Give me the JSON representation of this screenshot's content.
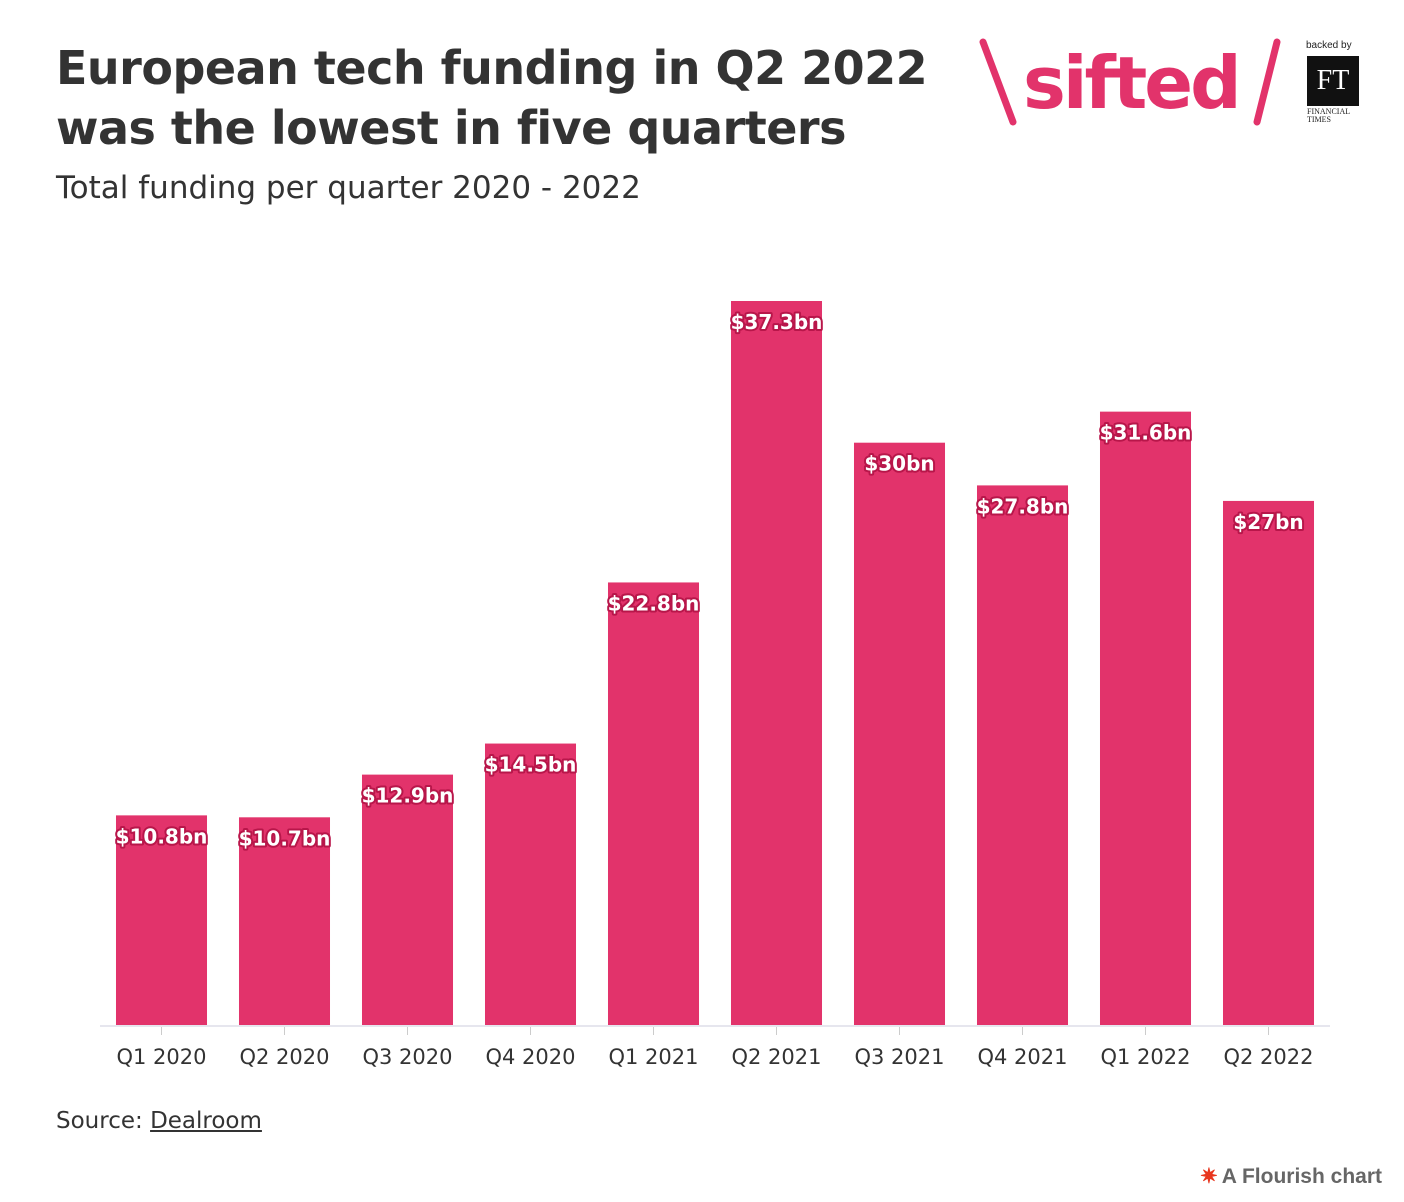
{
  "header": {
    "title": "European tech funding in Q2 2022 was the lowest in five quarters",
    "subtitle": "Total funding per quarter 2020 - 2022"
  },
  "branding": {
    "brand_name": "sifted",
    "backed_by": "backed by",
    "ft_mark": "FT",
    "ft_line1": "FINANCIAL",
    "ft_line2": "TIMES",
    "brand_color": "#e2336b"
  },
  "footer": {
    "source_label": "Source:",
    "source_link": "Dealroom",
    "flourish_label": "A Flourish chart"
  },
  "chart_data": {
    "type": "bar",
    "title": "European tech funding in Q2 2022 was the lowest in five quarters",
    "subtitle": "Total funding per quarter 2020 - 2022",
    "categories": [
      "Q1 2020",
      "Q2 2020",
      "Q3 2020",
      "Q4 2020",
      "Q1 2021",
      "Q2 2021",
      "Q3 2021",
      "Q4 2021",
      "Q1 2022",
      "Q2 2022"
    ],
    "values": [
      10.8,
      10.7,
      12.9,
      14.5,
      22.8,
      37.3,
      30,
      27.8,
      31.6,
      27
    ],
    "data_labels": [
      "$10.8bn",
      "$10.7bn",
      "$12.9bn",
      "$14.5bn",
      "$22.8bn",
      "$37.3bn",
      "$30bn",
      "$27.8bn",
      "$31.6bn",
      "$27bn"
    ],
    "unit": "$bn",
    "xlabel": "",
    "ylabel": "",
    "ylim": [
      0,
      37.3
    ],
    "grid": false,
    "legend": "none",
    "bar_color": "#e2336b"
  }
}
